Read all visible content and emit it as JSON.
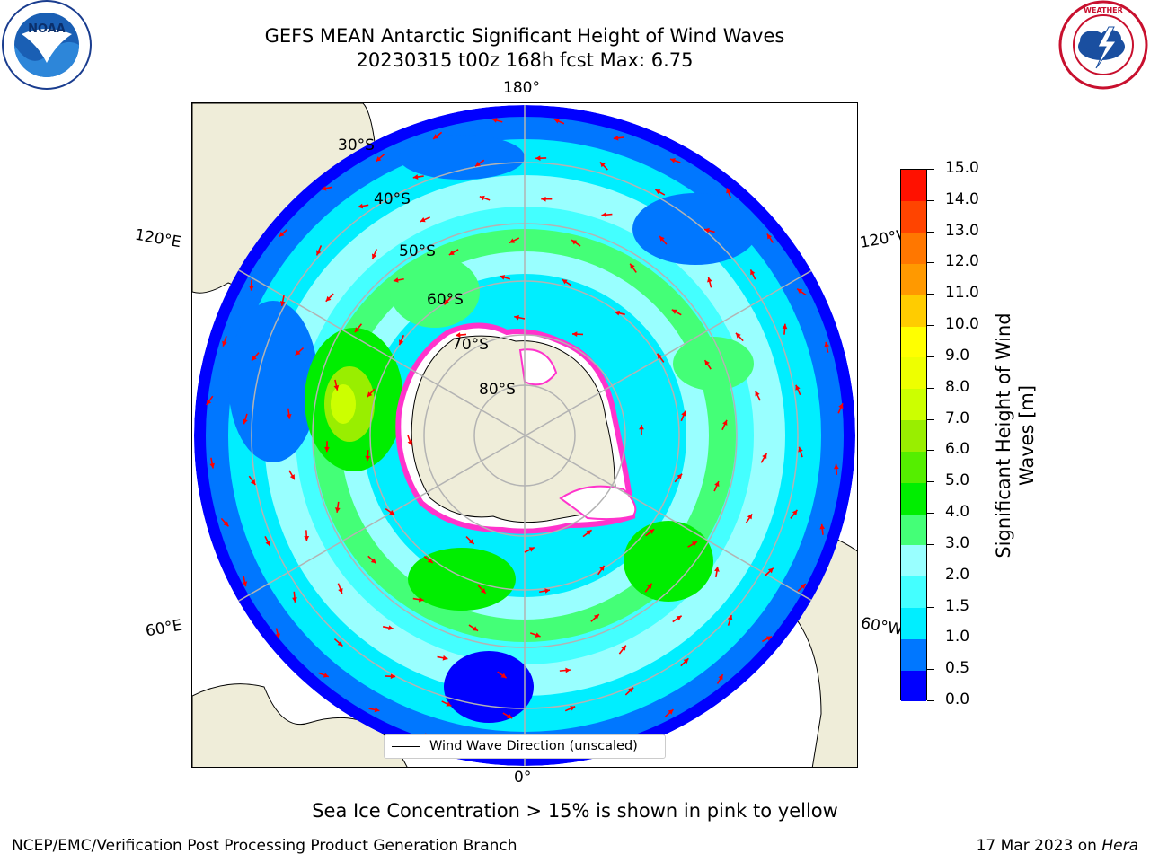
{
  "title": {
    "line1": "GEFS MEAN Antarctic Significant Height of Wind Waves",
    "line2": "20230315 t00z 168h fcst   Max: 6.75"
  },
  "logos": {
    "left": "NOAA",
    "left_ring_text": "NATIONAL OCEANIC AND ATMOSPHERIC ADMINISTRATION · U.S. DEPARTMENT OF COMMERCE",
    "right_ring_text": "NATIONAL WEATHER SERVICE"
  },
  "map": {
    "projection": "south-polar-stereographic",
    "longitude_labels": {
      "top": "180°",
      "bottom": "0°",
      "upper_left": "120°E",
      "upper_right": "120°W",
      "lower_left": "60°E",
      "lower_right": "60°W"
    },
    "latitude_labels": [
      "30°S",
      "40°S",
      "50°S",
      "60°S",
      "70°S",
      "80°S"
    ],
    "legend_label": "Wind Wave Direction (unscaled)",
    "colors": {
      "land": "#efedd9",
      "graticule": "#b3b3b3",
      "ice_fill": "#ffffff",
      "ice_edge": "#ff33cc",
      "arrows": "#ff0000"
    }
  },
  "colorbar": {
    "title": [
      "Significant Height of Wind",
      "Waves [m]"
    ],
    "ticks": [
      "0.0",
      "0.5",
      "1.0",
      "1.5",
      "2.0",
      "3.0",
      "4.0",
      "5.0",
      "6.0",
      "7.0",
      "8.0",
      "9.0",
      "10.0",
      "11.0",
      "12.0",
      "13.0",
      "14.0",
      "15.0"
    ],
    "colors": [
      "#0000ff",
      "#0077ff",
      "#00eeff",
      "#44ffff",
      "#99ffff",
      "#44ff77",
      "#00ee00",
      "#55ee00",
      "#99ee00",
      "#ccff00",
      "#eeff00",
      "#ffff00",
      "#ffcc00",
      "#ff9900",
      "#ff7700",
      "#ff4400",
      "#ff1100"
    ]
  },
  "caption": "Sea Ice Concentration > 15% is shown in pink to yellow",
  "footer": {
    "left": "NCEP/EMC/Verification Post Processing Product Generation Branch",
    "right_prefix": "17 Mar 2023 on ",
    "right_host": "Hera"
  }
}
